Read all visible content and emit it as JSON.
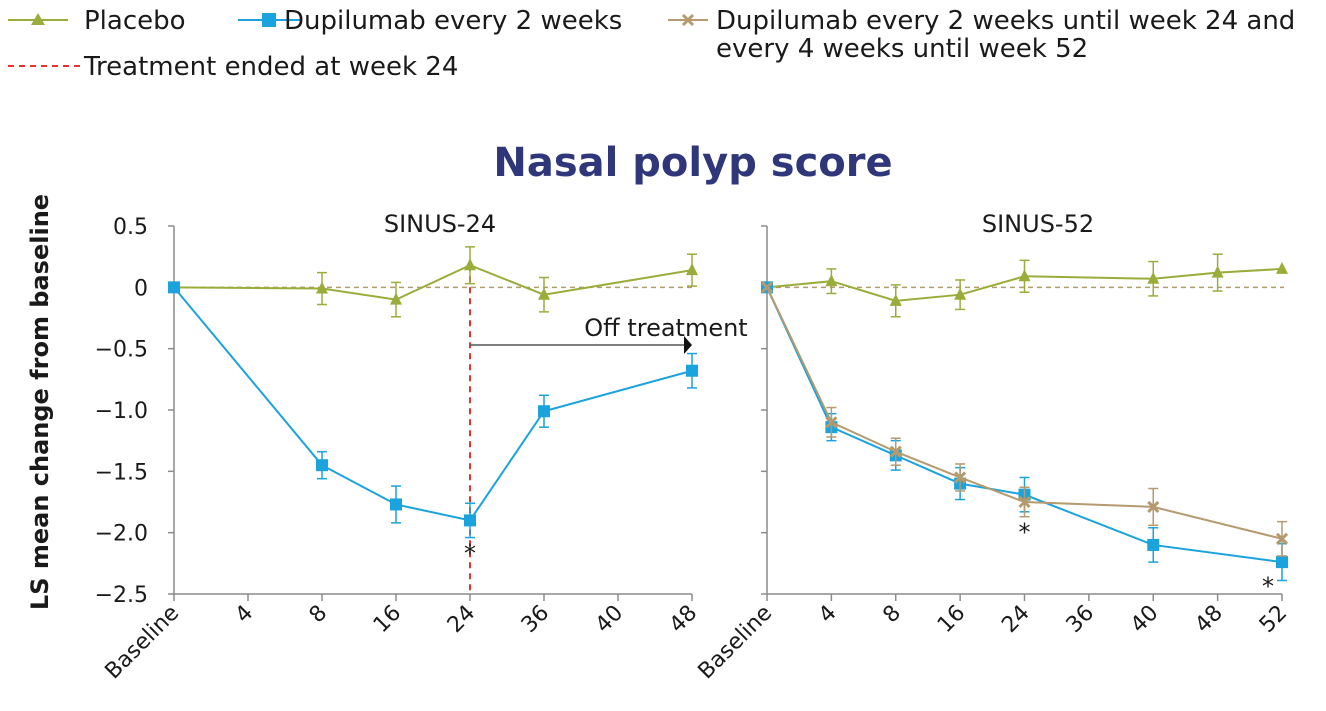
{
  "legend": {
    "placebo": "Placebo",
    "q2w": "Dupilumab every 2 weeks",
    "q2w_q4w_line1": "Dupilumab every 2 weeks until week 24 and",
    "q2w_q4w_line2": "every 4 weeks until week 52",
    "treatment_ended": "Treatment ended at week 24"
  },
  "colors": {
    "placebo": "#9aad3a",
    "q2w": "#1aa3dc",
    "q2w_q4w": "#b49a6e",
    "treatment_ended": "#e8322c",
    "title": "#2f3679",
    "axis": "#8c8c8c"
  },
  "chart_data": [
    {
      "type": "line",
      "title": "Nasal polyp score",
      "subtitle": "SINUS-24",
      "ylabel": "LS mean change from baseline",
      "ylim": [
        -2.5,
        0.5
      ],
      "yticks": [
        "0.5",
        "0",
        "−0.5",
        "−1.0",
        "−1.5",
        "−2.0",
        "−2.5"
      ],
      "x": [
        "Baseline",
        "4",
        "8",
        "16",
        "24",
        "36",
        "40",
        "48"
      ],
      "series": [
        {
          "name": "Placebo",
          "color_key": "placebo",
          "marker": "triangle",
          "values": [
            0,
            null,
            -0.01,
            -0.1,
            0.18,
            -0.06,
            null,
            0.14
          ],
          "err": [
            0,
            null,
            0.13,
            0.14,
            0.15,
            0.14,
            null,
            0.13
          ]
        },
        {
          "name": "Dupilumab every 2 weeks",
          "color_key": "q2w",
          "marker": "square",
          "values": [
            0,
            null,
            -1.45,
            -1.77,
            -1.9,
            -1.01,
            null,
            -0.68
          ],
          "err": [
            0,
            null,
            0.11,
            0.15,
            0.14,
            0.13,
            null,
            0.14
          ]
        }
      ],
      "annotations": {
        "off_treatment": "Off treatment",
        "significance_at": [
          "24"
        ],
        "significance_mark": "*",
        "vline_at": "24"
      }
    },
    {
      "type": "line",
      "subtitle": "SINUS-52",
      "ylim": [
        -2.5,
        0.5
      ],
      "x": [
        "Baseline",
        "4",
        "8",
        "16",
        "24",
        "36",
        "40",
        "48",
        "52"
      ],
      "series": [
        {
          "name": "Placebo",
          "color_key": "placebo",
          "marker": "triangle",
          "values": [
            0,
            0.05,
            -0.11,
            -0.06,
            0.09,
            null,
            0.07,
            0.12,
            0.15
          ],
          "err": [
            0,
            0.1,
            0.13,
            0.12,
            0.13,
            null,
            0.14,
            0.15,
            null
          ]
        },
        {
          "name": "Dupilumab every 2 weeks",
          "color_key": "q2w",
          "marker": "square",
          "values": [
            0,
            -1.14,
            -1.37,
            -1.6,
            -1.69,
            null,
            -2.1,
            null,
            -2.24
          ],
          "err": [
            0,
            0.11,
            0.12,
            0.13,
            0.14,
            null,
            0.14,
            null,
            0.15
          ]
        },
        {
          "name": "Dupilumab every 2 weeks until week 24 and every 4 weeks until week 52",
          "color_key": "q2w_q4w",
          "marker": "cross",
          "values": [
            0,
            -1.1,
            -1.34,
            -1.55,
            -1.75,
            null,
            -1.79,
            null,
            -2.05
          ],
          "err": [
            0,
            0.12,
            0.11,
            0.11,
            0.12,
            null,
            0.15,
            null,
            0.14
          ]
        }
      ],
      "annotations": {
        "significance_at": [
          "24",
          "52"
        ],
        "significance_mark": "*"
      }
    }
  ]
}
